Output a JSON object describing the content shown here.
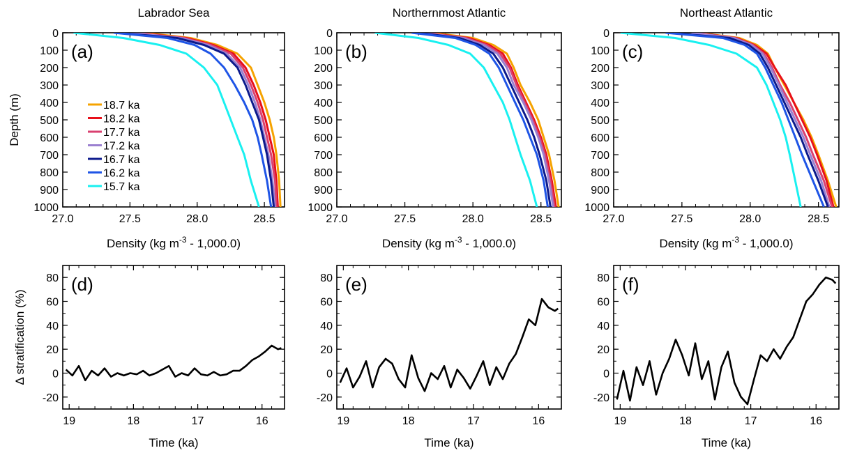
{
  "chart_data": [
    {
      "type": "line",
      "panel_label": "(a)",
      "title": "Labrador Sea",
      "xlabel": "Density (kg m",
      "xlabel_sup": "-3",
      "xlabel_tail": " - 1,000.0)",
      "ylabel": "Depth (m)",
      "xlim": [
        27.0,
        28.65
      ],
      "ylim": [
        1000,
        0
      ],
      "xticks": [
        "27.0",
        "27.5",
        "28.0",
        "28.5"
      ],
      "yticks": [
        "0",
        "100",
        "200",
        "300",
        "400",
        "500",
        "600",
        "700",
        "800",
        "900",
        "1000"
      ],
      "legend": "inside left",
      "series": [
        {
          "name": "18.7 ka",
          "color": "#f5a300",
          "x": [
            27.6,
            27.95,
            28.15,
            28.3,
            28.4,
            28.45,
            28.5,
            28.54,
            28.57,
            28.59,
            28.61,
            28.62
          ],
          "y": [
            0,
            30,
            70,
            120,
            200,
            300,
            400,
            500,
            600,
            700,
            850,
            1000
          ]
        },
        {
          "name": "18.2 ka",
          "color": "#e8101a",
          "x": [
            27.55,
            27.92,
            28.12,
            28.27,
            28.36,
            28.42,
            28.47,
            28.51,
            28.54,
            28.57,
            28.59,
            28.6
          ],
          "y": [
            0,
            30,
            70,
            120,
            200,
            300,
            400,
            500,
            600,
            700,
            850,
            1000
          ]
        },
        {
          "name": "17.7 ka",
          "color": "#d94070",
          "x": [
            27.52,
            27.9,
            28.1,
            28.25,
            28.34,
            28.4,
            28.45,
            28.49,
            28.52,
            28.55,
            28.58,
            28.59
          ],
          "y": [
            0,
            30,
            70,
            120,
            200,
            300,
            400,
            500,
            600,
            700,
            850,
            1000
          ]
        },
        {
          "name": "17.2 ka",
          "color": "#9b80d0",
          "x": [
            27.5,
            27.88,
            28.08,
            28.22,
            28.32,
            28.38,
            28.43,
            28.47,
            28.5,
            28.53,
            28.56,
            28.58
          ],
          "y": [
            0,
            30,
            70,
            120,
            200,
            300,
            400,
            500,
            600,
            700,
            850,
            1000
          ]
        },
        {
          "name": "16.7 ka",
          "color": "#0c1a8c",
          "x": [
            27.4,
            27.85,
            28.05,
            28.2,
            28.3,
            28.36,
            28.41,
            28.46,
            28.49,
            28.52,
            28.55,
            28.57
          ],
          "y": [
            0,
            30,
            70,
            120,
            200,
            300,
            400,
            500,
            600,
            700,
            850,
            1000
          ]
        },
        {
          "name": "16.2 ka",
          "color": "#1f55e6",
          "x": [
            27.38,
            27.78,
            27.98,
            28.1,
            28.2,
            28.28,
            28.35,
            28.41,
            28.45,
            28.48,
            28.52,
            28.55
          ],
          "y": [
            0,
            30,
            70,
            120,
            200,
            300,
            400,
            500,
            600,
            700,
            850,
            1000
          ]
        },
        {
          "name": "15.7 ka",
          "color": "#19f0f0",
          "x": [
            27.08,
            27.45,
            27.72,
            27.92,
            28.05,
            28.15,
            28.2,
            28.25,
            28.3,
            28.35,
            28.4,
            28.46
          ],
          "y": [
            0,
            30,
            70,
            120,
            200,
            300,
            400,
            500,
            600,
            700,
            850,
            1000
          ]
        }
      ]
    },
    {
      "type": "line",
      "panel_label": "(b)",
      "title": "Northernmost Atlantic",
      "xlabel": "Density (kg m",
      "xlabel_sup": "-3",
      "xlabel_tail": " - 1,000.0)",
      "ylabel": "",
      "xlim": [
        27.0,
        28.65
      ],
      "ylim": [
        1000,
        0
      ],
      "xticks": [
        "27.0",
        "27.5",
        "28.0",
        "28.5"
      ],
      "yticks": [
        "0",
        "100",
        "200",
        "300",
        "400",
        "500",
        "600",
        "700",
        "800",
        "900",
        "1000"
      ],
      "series": [
        {
          "name": "18.7 ka",
          "color": "#f5a300",
          "x": [
            27.7,
            28.0,
            28.15,
            28.25,
            28.3,
            28.35,
            28.42,
            28.48,
            28.52,
            28.56,
            28.6,
            28.63
          ],
          "y": [
            0,
            30,
            70,
            120,
            200,
            300,
            400,
            500,
            600,
            700,
            850,
            1000
          ]
        },
        {
          "name": "18.2 ka",
          "color": "#e8101a",
          "x": [
            27.65,
            27.97,
            28.12,
            28.22,
            28.28,
            28.33,
            28.39,
            28.45,
            28.5,
            28.54,
            28.58,
            28.61
          ],
          "y": [
            0,
            30,
            70,
            120,
            200,
            300,
            400,
            500,
            600,
            700,
            850,
            1000
          ]
        },
        {
          "name": "17.7 ka",
          "color": "#d94070",
          "x": [
            27.63,
            27.95,
            28.1,
            28.2,
            28.27,
            28.32,
            28.38,
            28.44,
            28.49,
            28.53,
            28.57,
            28.6
          ],
          "y": [
            0,
            30,
            70,
            120,
            200,
            300,
            400,
            500,
            600,
            700,
            850,
            1000
          ]
        },
        {
          "name": "17.2 ka",
          "color": "#9b80d0",
          "x": [
            27.62,
            27.93,
            28.08,
            28.18,
            28.25,
            28.3,
            28.37,
            28.43,
            28.48,
            28.52,
            28.56,
            28.59
          ],
          "y": [
            0,
            30,
            70,
            120,
            200,
            300,
            400,
            500,
            600,
            700,
            850,
            1000
          ]
        },
        {
          "name": "16.7 ka",
          "color": "#0c1a8c",
          "x": [
            27.6,
            27.9,
            28.05,
            28.15,
            28.22,
            28.28,
            28.34,
            28.4,
            28.45,
            28.49,
            28.54,
            28.57
          ],
          "y": [
            0,
            30,
            70,
            120,
            200,
            300,
            400,
            500,
            600,
            700,
            850,
            1000
          ]
        },
        {
          "name": "16.2 ka",
          "color": "#1f55e6",
          "x": [
            27.55,
            27.87,
            28.02,
            28.12,
            28.19,
            28.25,
            28.31,
            28.37,
            28.42,
            28.47,
            28.52,
            28.55
          ],
          "y": [
            0,
            30,
            70,
            120,
            200,
            300,
            400,
            500,
            600,
            700,
            850,
            1000
          ]
        },
        {
          "name": "15.7 ka",
          "color": "#19f0f0",
          "x": [
            27.28,
            27.6,
            27.82,
            27.98,
            28.08,
            28.15,
            28.22,
            28.27,
            28.31,
            28.35,
            28.42,
            28.47
          ],
          "y": [
            0,
            30,
            70,
            120,
            200,
            300,
            400,
            500,
            600,
            700,
            850,
            1000
          ]
        }
      ]
    },
    {
      "type": "line",
      "panel_label": "(c)",
      "title": "Northeast Atlantic",
      "xlabel": "Density (kg m",
      "xlabel_sup": "-3",
      "xlabel_tail": " - 1,000.0)",
      "ylabel": "",
      "xlim": [
        27.0,
        28.65
      ],
      "ylim": [
        1000,
        0
      ],
      "xticks": [
        "27.0",
        "27.5",
        "28.0",
        "28.5"
      ],
      "yticks": [
        "0",
        "100",
        "200",
        "300",
        "400",
        "500",
        "600",
        "700",
        "800",
        "900",
        "1000"
      ],
      "series": [
        {
          "name": "18.7 ka",
          "color": "#f5a300",
          "x": [
            27.62,
            27.92,
            28.05,
            28.13,
            28.18,
            28.25,
            28.32,
            28.39,
            28.45,
            28.5,
            28.57,
            28.63
          ],
          "y": [
            0,
            30,
            70,
            120,
            200,
            300,
            400,
            500,
            600,
            700,
            850,
            1000
          ]
        },
        {
          "name": "18.2 ka",
          "color": "#e8101a",
          "x": [
            27.6,
            27.9,
            28.03,
            28.12,
            28.18,
            28.26,
            28.32,
            28.38,
            28.44,
            28.49,
            28.56,
            28.61
          ],
          "y": [
            0,
            30,
            70,
            120,
            200,
            300,
            400,
            500,
            600,
            700,
            850,
            1000
          ]
        },
        {
          "name": "17.7 ka",
          "color": "#d94070",
          "x": [
            27.58,
            27.89,
            28.02,
            28.1,
            28.16,
            28.22,
            28.29,
            28.35,
            28.41,
            28.46,
            28.54,
            28.6
          ],
          "y": [
            0,
            30,
            70,
            120,
            200,
            300,
            400,
            500,
            600,
            700,
            850,
            1000
          ]
        },
        {
          "name": "17.2 ka",
          "color": "#9b80d0",
          "x": [
            27.57,
            27.88,
            28.01,
            28.09,
            28.15,
            28.21,
            28.27,
            28.33,
            28.39,
            28.44,
            28.52,
            28.58
          ],
          "y": [
            0,
            30,
            70,
            120,
            200,
            300,
            400,
            500,
            600,
            700,
            850,
            1000
          ]
        },
        {
          "name": "16.7 ka",
          "color": "#0c1a8c",
          "x": [
            27.4,
            27.85,
            27.99,
            28.07,
            28.13,
            28.19,
            28.25,
            28.31,
            28.37,
            28.42,
            28.5,
            28.57
          ],
          "y": [
            0,
            30,
            70,
            120,
            200,
            300,
            400,
            500,
            600,
            700,
            850,
            1000
          ]
        },
        {
          "name": "16.2 ka",
          "color": "#1f55e6",
          "x": [
            27.38,
            27.8,
            27.96,
            28.05,
            28.11,
            28.17,
            28.23,
            28.28,
            28.33,
            28.38,
            28.46,
            28.54
          ],
          "y": [
            0,
            30,
            70,
            120,
            200,
            300,
            400,
            500,
            600,
            700,
            850,
            1000
          ]
        },
        {
          "name": "15.7 ka",
          "color": "#19f0f0",
          "x": [
            27.05,
            27.45,
            27.7,
            27.9,
            28.05,
            28.12,
            28.17,
            28.22,
            28.26,
            28.29,
            28.33,
            28.37
          ],
          "y": [
            0,
            30,
            70,
            120,
            200,
            300,
            400,
            500,
            600,
            700,
            850,
            1000
          ]
        }
      ]
    },
    {
      "type": "line",
      "panel_label": "(d)",
      "title": "",
      "xlabel": "Time (ka)",
      "ylabel": "Δ stratification (%)",
      "xlim": [
        19.1,
        15.65
      ],
      "ylim": [
        -30,
        90
      ],
      "xticks": [
        "19",
        "18",
        "17",
        "16"
      ],
      "yticks": [
        "-20",
        "0",
        "20",
        "40",
        "60",
        "80"
      ],
      "series": [
        {
          "color": "#000000",
          "x": [
            19.05,
            18.95,
            18.85,
            18.75,
            18.65,
            18.55,
            18.45,
            18.35,
            18.25,
            18.15,
            18.05,
            17.95,
            17.85,
            17.75,
            17.65,
            17.55,
            17.45,
            17.35,
            17.25,
            17.15,
            17.05,
            16.95,
            16.85,
            16.75,
            16.65,
            16.55,
            16.45,
            16.35,
            16.25,
            16.15,
            16.05,
            15.95,
            15.85,
            15.75,
            15.7
          ],
          "y": [
            3,
            -2,
            6,
            -6,
            2,
            -2,
            4,
            -3,
            0,
            -2,
            0,
            -1,
            2,
            -2,
            0,
            3,
            6,
            -3,
            0,
            -2,
            4,
            -1,
            -2,
            1,
            -2,
            -1,
            2,
            2,
            6,
            11,
            14,
            18,
            23,
            20,
            21
          ]
        }
      ]
    },
    {
      "type": "line",
      "panel_label": "(e)",
      "title": "",
      "xlabel": "Time (ka)",
      "ylabel": "",
      "xlim": [
        19.1,
        15.65
      ],
      "ylim": [
        -30,
        90
      ],
      "xticks": [
        "19",
        "18",
        "17",
        "16"
      ],
      "yticks": [
        "-20",
        "0",
        "20",
        "40",
        "60",
        "80"
      ],
      "series": [
        {
          "color": "#000000",
          "x": [
            19.05,
            18.95,
            18.85,
            18.75,
            18.65,
            18.55,
            18.45,
            18.35,
            18.25,
            18.15,
            18.05,
            17.95,
            17.85,
            17.75,
            17.65,
            17.55,
            17.45,
            17.35,
            17.25,
            17.15,
            17.05,
            16.95,
            16.85,
            16.75,
            16.65,
            16.55,
            16.45,
            16.35,
            16.25,
            16.15,
            16.05,
            15.95,
            15.85,
            15.75,
            15.7
          ],
          "y": [
            -8,
            4,
            -12,
            -3,
            10,
            -12,
            5,
            12,
            8,
            -5,
            -12,
            15,
            -4,
            -15,
            0,
            -5,
            6,
            -12,
            3,
            -4,
            -13,
            -2,
            10,
            -10,
            5,
            -5,
            8,
            16,
            30,
            45,
            40,
            62,
            55,
            52,
            54
          ]
        }
      ]
    },
    {
      "type": "line",
      "panel_label": "(f)",
      "title": "",
      "xlabel": "Time (ka)",
      "ylabel": "",
      "xlim": [
        19.1,
        15.65
      ],
      "ylim": [
        -30,
        90
      ],
      "xticks": [
        "19",
        "18",
        "17",
        "16"
      ],
      "yticks": [
        "-20",
        "0",
        "20",
        "40",
        "60",
        "80"
      ],
      "series": [
        {
          "color": "#000000",
          "x": [
            19.05,
            18.95,
            18.85,
            18.75,
            18.65,
            18.55,
            18.45,
            18.35,
            18.25,
            18.15,
            18.05,
            17.95,
            17.85,
            17.75,
            17.65,
            17.55,
            17.45,
            17.35,
            17.25,
            17.15,
            17.05,
            16.95,
            16.85,
            16.75,
            16.65,
            16.55,
            16.45,
            16.35,
            16.25,
            16.15,
            16.05,
            15.95,
            15.85,
            15.75,
            15.7
          ],
          "y": [
            -22,
            2,
            -23,
            5,
            -10,
            10,
            -18,
            0,
            12,
            28,
            15,
            -2,
            25,
            -5,
            10,
            -22,
            5,
            18,
            -8,
            -20,
            -26,
            -5,
            15,
            10,
            20,
            12,
            22,
            30,
            45,
            60,
            66,
            74,
            80,
            78,
            75
          ]
        }
      ]
    }
  ]
}
